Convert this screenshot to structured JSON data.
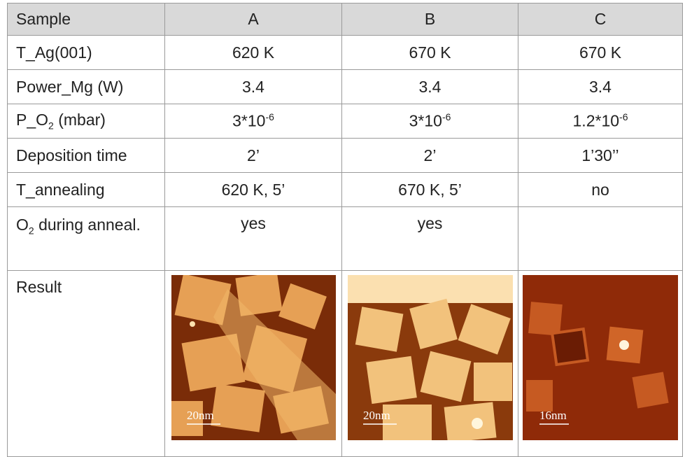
{
  "table": {
    "header": [
      "Sample",
      "A",
      "B",
      "C"
    ],
    "rows": [
      [
        "T_Ag(001)",
        "620 K",
        "670 K",
        "670 K"
      ],
      [
        "Power_Mg (W)",
        "3.4",
        "3.4",
        "3.4"
      ],
      [
        {
          "base": "P_O",
          "sub": "2",
          "tail": " (mbar)"
        },
        {
          "base": "3*10",
          "sup": "-6"
        },
        {
          "base": "3*10",
          "sup": "-6"
        },
        {
          "base": "1.2*10",
          "sup": "-6"
        }
      ],
      [
        "Deposition time",
        "2’",
        "2’",
        "1’30’’"
      ],
      [
        "T_annealing",
        "620 K, 5’",
        "670 K, 5’",
        "no"
      ],
      [
        {
          "base": "O",
          "sub": "2",
          "tail": " during anneal."
        },
        "yes",
        "yes"
      ]
    ],
    "result": {
      "label": "Result",
      "scale_bars": [
        "20nm",
        "20nm",
        "16nm"
      ]
    }
  }
}
